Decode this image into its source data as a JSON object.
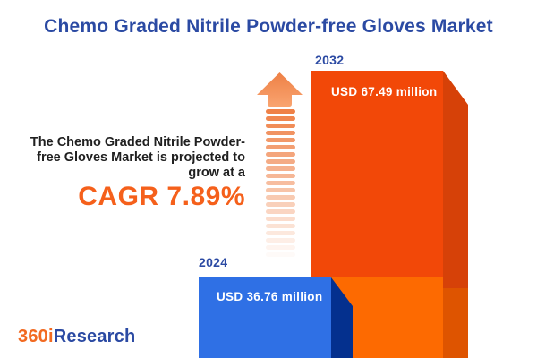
{
  "header": {
    "title": "Chemo Graded Nitrile Powder-free Gloves Market"
  },
  "projection": {
    "text": "The Chemo Graded Nitrile Powder-free Gloves Market is projected to grow at a",
    "lines": [
      "The Chemo Graded Nitrile Powder-",
      "free Gloves Market is projected to",
      "grow at a"
    ],
    "cagr_label": "CAGR 7.89%"
  },
  "chart_data": {
    "type": "bar",
    "title": "Chemo Graded Nitrile Powder-free Gloves Market",
    "categories": [
      "2024",
      "2032"
    ],
    "values": [
      36.76,
      67.49
    ],
    "unit": "USD million",
    "value_labels": [
      "USD 36.76 million",
      "USD 67.49 million"
    ],
    "cagr_percent": 7.89,
    "bar_colors": [
      "#2F70E5",
      "#F24808"
    ],
    "legend": "none",
    "axes": "none",
    "style": "3d-truncated-bars"
  },
  "bars": [
    {
      "year": "2024",
      "label": "USD 36.76 million",
      "front_color": "#2F70E5",
      "side_color": "#04308E"
    },
    {
      "year": "2032",
      "label": "USD 67.49 million",
      "front_color_upper": "#F24808",
      "front_color_lower": "#FD6A01",
      "side_color_upper": "#D64108",
      "side_color_lower": "#DE5400"
    }
  ],
  "arrow": {
    "direction": "up",
    "color_top": "#EE8045",
    "color_bottom": "#F9A470",
    "dash_color": "#EF8147"
  },
  "logo": {
    "prefix": "360i",
    "suffix": "Research",
    "prefix_color": "#F26A21",
    "suffix_color": "#2B4AA3"
  },
  "colors": {
    "accent_blue": "#2B4AA3",
    "accent_orange": "#F5601B",
    "text_dark": "#202020",
    "background": "#FFFFFF"
  }
}
